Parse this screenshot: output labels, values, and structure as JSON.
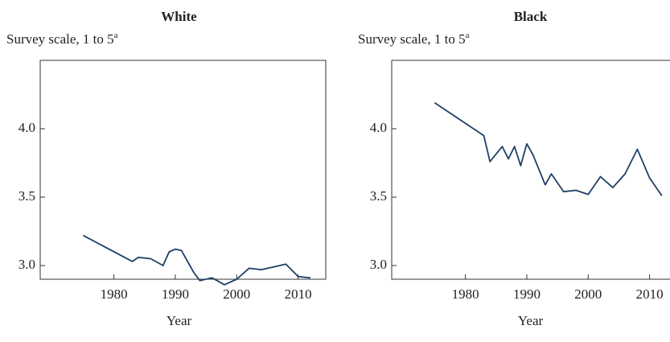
{
  "chart_data": [
    {
      "type": "line",
      "title": "White",
      "ylabel": "Survey scale, 1 to 5",
      "ylabel_note": "a",
      "xlabel": "Year",
      "x": [
        1975,
        1983,
        1984,
        1986,
        1988,
        1989,
        1990,
        1991,
        1993,
        1994,
        1996,
        1998,
        2000,
        2002,
        2004,
        2006,
        2008,
        2010,
        2012
      ],
      "series": [
        {
          "color": "#1f3f66",
          "values": [
            3.22,
            3.03,
            3.06,
            3.05,
            3.0,
            3.1,
            3.12,
            3.11,
            2.95,
            2.89,
            2.91,
            2.86,
            2.9,
            2.98,
            2.97,
            2.99,
            3.01,
            2.92,
            2.91
          ]
        }
      ],
      "xlim": [
        1968,
        2014.5
      ],
      "xticks": [
        1980,
        1990,
        2000,
        2010
      ],
      "ylim": [
        2.9,
        4.5
      ],
      "yticks": [
        {
          "value": 3,
          "label": "3.0"
        },
        3.5,
        {
          "value": 4,
          "label": "4.0"
        }
      ]
    },
    {
      "type": "line",
      "title": "Black",
      "ylabel": "Survey scale, 1 to 5",
      "ylabel_note": "a",
      "xlabel": "Year",
      "x": [
        1975,
        1983,
        1984,
        1986,
        1987,
        1988,
        1989,
        1990,
        1991,
        1993,
        1994,
        1996,
        1998,
        2000,
        2002,
        2004,
        2006,
        2008,
        2010,
        2012
      ],
      "series": [
        {
          "color": "#1f3f66",
          "values": [
            4.19,
            3.95,
            3.76,
            3.87,
            3.78,
            3.87,
            3.73,
            3.89,
            3.81,
            3.59,
            3.67,
            3.54,
            3.55,
            3.52,
            3.65,
            3.57,
            3.67,
            3.85,
            3.64,
            3.51
          ]
        }
      ],
      "xlim": [
        1968,
        2014.5
      ],
      "xticks": [
        1980,
        1990,
        2000,
        2010
      ],
      "ylim": [
        2.9,
        4.5
      ],
      "yticks": [
        {
          "value": 3,
          "label": "3.0"
        },
        3.5,
        {
          "value": 4,
          "label": "4.0"
        }
      ]
    }
  ]
}
